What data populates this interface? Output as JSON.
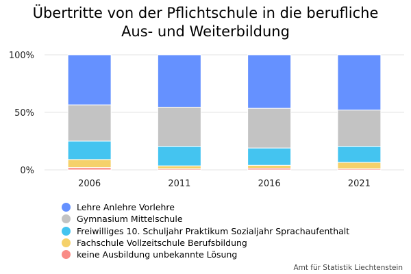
{
  "chart_data": {
    "type": "bar",
    "stacked": true,
    "title_lines": [
      "Übertritte von der Pflichtschule in die berufliche",
      "Aus- und Weiterbildung"
    ],
    "categories": [
      "2006",
      "2011",
      "2016",
      "2021"
    ],
    "ylim": [
      0,
      100
    ],
    "yticks": [
      0,
      50,
      100
    ],
    "ytick_labels": [
      "0%",
      "50%",
      "100%"
    ],
    "grid": true,
    "legend_position": "bottom-left",
    "series": [
      {
        "name": "keine Ausbildung unbekannte Lösung",
        "color": "#f98b86",
        "values": [
          2,
          1,
          1.5,
          1
        ]
      },
      {
        "name": "Fachschule Vollzeitschule Berufsbildung",
        "color": "#f5d16a",
        "values": [
          7,
          2.5,
          2.5,
          5.5
        ]
      },
      {
        "name": "Freiwilliges 10. Schuljahr Praktikum Sozialjahr Sprachaufenthalt",
        "color": "#44c4f0",
        "values": [
          16,
          17,
          15,
          14
        ]
      },
      {
        "name": "Gymnasium Mittelschule",
        "color": "#c3c3c3",
        "values": [
          31.5,
          34,
          34.5,
          31.5
        ]
      },
      {
        "name": "Lehre Anlehre Vorlehre",
        "color": "#6591ff",
        "values": [
          43.5,
          45.5,
          46.5,
          48
        ]
      }
    ],
    "legend_order": [
      4,
      3,
      2,
      1,
      0
    ]
  },
  "source": "Amt für Statistik Liechtenstein"
}
